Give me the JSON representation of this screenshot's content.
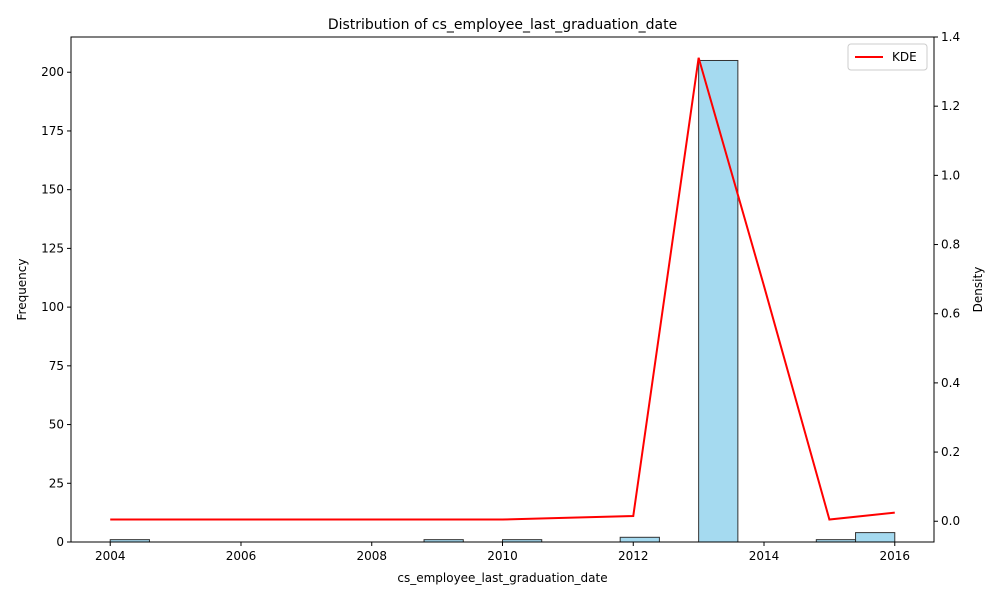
{
  "chart_data": {
    "type": "bar",
    "title": "Distribution of cs_employee_last_graduation_date",
    "xlabel": "cs_employee_last_graduation_date",
    "ylabel": "Frequency",
    "y2label": "Density",
    "xlim": [
      2003.4,
      2016.6
    ],
    "ylim": [
      0,
      215
    ],
    "y2lim": [
      -0.06,
      1.4
    ],
    "x_ticks": [
      2004,
      2006,
      2008,
      2010,
      2012,
      2014,
      2016
    ],
    "y_ticks": [
      0,
      25,
      50,
      75,
      100,
      125,
      150,
      175,
      200
    ],
    "y2_ticks": [
      0.0,
      0.2,
      0.4,
      0.6,
      0.8,
      1.0,
      1.2,
      1.4
    ],
    "bars": {
      "bin_start": [
        2004.0,
        2004.6,
        2005.2,
        2005.8,
        2006.4,
        2007.0,
        2007.6,
        2008.2,
        2008.8,
        2009.4,
        2010.0,
        2010.6,
        2011.2,
        2011.8,
        2012.4,
        2013.0,
        2013.6,
        2014.2,
        2014.8,
        2015.4
      ],
      "bin_end": [
        2004.6,
        2005.2,
        2005.8,
        2006.4,
        2007.0,
        2007.6,
        2008.2,
        2008.8,
        2009.4,
        2010.0,
        2010.6,
        2011.2,
        2011.8,
        2012.4,
        2013.0,
        2013.6,
        2014.2,
        2014.8,
        2015.4,
        2016.0
      ],
      "values": [
        1,
        0,
        0,
        0,
        0,
        0,
        0,
        0,
        1,
        0,
        1,
        0,
        0,
        2,
        0,
        205,
        0,
        0,
        1,
        4
      ],
      "color": "#87ceeb",
      "edge_color": "#333333"
    },
    "series": [
      {
        "name": "KDE",
        "axis": "right",
        "color": "#ff0000",
        "x": [
          2004,
          2005,
          2006,
          2007,
          2008,
          2009,
          2010,
          2011,
          2012,
          2013,
          2014,
          2015,
          2016
        ],
        "y": [
          0.005,
          0.005,
          0.005,
          0.005,
          0.005,
          0.005,
          0.005,
          0.01,
          0.015,
          1.34,
          0.68,
          0.005,
          0.025
        ]
      }
    ],
    "legend": {
      "position": "top-right",
      "entries": [
        "KDE"
      ]
    },
    "grid": false
  }
}
